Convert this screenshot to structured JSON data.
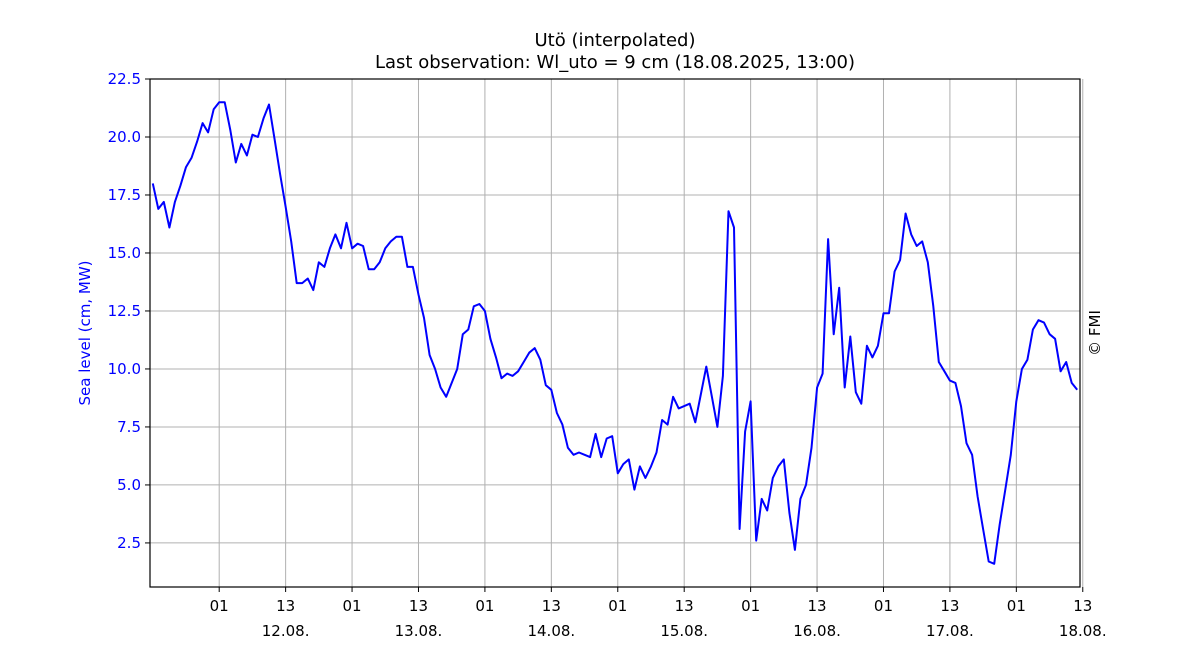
{
  "chart_data": {
    "type": "line",
    "title": "Utö (interpolated)",
    "subtitle": "Last observation: Wl_uto = 9 cm (18.08.2025, 13:00)",
    "ylabel": "Sea level (cm, MW)",
    "xlabel": "",
    "copyright": "© FMI",
    "ylim": [
      0.6,
      22.5
    ],
    "yticks": [
      2.5,
      5.0,
      7.5,
      10.0,
      12.5,
      15.0,
      17.5,
      20.0,
      22.5
    ],
    "ytick_labels": [
      "2.5",
      "5.0",
      "7.5",
      "10.0",
      "12.5",
      "15.0",
      "17.5",
      "20.0",
      "22.5"
    ],
    "x_unit": "hours from 11.08.2025 13:00",
    "xlim": [
      -0.5,
      167.5
    ],
    "xticks": [
      12,
      24,
      36,
      48,
      60,
      72,
      84,
      96,
      108,
      120,
      132,
      144,
      156,
      168
    ],
    "xtick_labels": [
      "01",
      "13",
      "01",
      "13",
      "01",
      "13",
      "01",
      "13",
      "01",
      "13",
      "01",
      "13",
      "01",
      "13"
    ],
    "xtick_date_labels": [
      "",
      "12.08.",
      "",
      "13.08.",
      "",
      "14.08.",
      "",
      "15.08.",
      "",
      "16.08.",
      "",
      "17.08.",
      "",
      "18.08."
    ],
    "grid": true,
    "colors": {
      "line": "#0000ff",
      "ylabel": "#0000ff",
      "grid": "#b0b0b0"
    },
    "series": [
      {
        "x": [
          0,
          1,
          2,
          3,
          4,
          5,
          6,
          7,
          8,
          9,
          10,
          11,
          12,
          13,
          14,
          15,
          16,
          17,
          18,
          19,
          20,
          21,
          22,
          23,
          24,
          25,
          26,
          27,
          28,
          29,
          30,
          31,
          32,
          33,
          34,
          35,
          36,
          37,
          38,
          39,
          40,
          41,
          42,
          43,
          44,
          45,
          46,
          47,
          48,
          49,
          50,
          51,
          52,
          53,
          54,
          55,
          56,
          57,
          58,
          59,
          60,
          61,
          62,
          63,
          64,
          65,
          66,
          67,
          68,
          69,
          70,
          71,
          72,
          73,
          74,
          75,
          76,
          77,
          78,
          79,
          80,
          81,
          82,
          83,
          84,
          85,
          86,
          87,
          88,
          89,
          90,
          91,
          92,
          93,
          94,
          95,
          96,
          97,
          98,
          99,
          100,
          101,
          102,
          103,
          104,
          105,
          106,
          107,
          108,
          109,
          110,
          111,
          112,
          113,
          114,
          115,
          116,
          117,
          118,
          119,
          120,
          121,
          122,
          123,
          124,
          125,
          126,
          127,
          128,
          129,
          130,
          131,
          132,
          133,
          134,
          135,
          136,
          137,
          138,
          139,
          140,
          141,
          142,
          143,
          144,
          145,
          146,
          147,
          148,
          149,
          150,
          151,
          152,
          153,
          154,
          155,
          156,
          157,
          158,
          159,
          160,
          161,
          162,
          163,
          164,
          165,
          166,
          167
        ],
        "y": [
          18.0,
          16.9,
          17.2,
          16.1,
          17.2,
          17.9,
          18.7,
          19.1,
          19.8,
          20.6,
          20.2,
          21.2,
          21.5,
          21.5,
          20.3,
          18.9,
          19.7,
          19.2,
          20.1,
          20.0,
          20.8,
          21.4,
          19.9,
          18.4,
          17.0,
          15.5,
          13.7,
          13.7,
          13.9,
          13.4,
          14.6,
          14.4,
          15.2,
          15.8,
          15.2,
          16.3,
          15.2,
          15.4,
          15.3,
          14.3,
          14.3,
          14.6,
          15.2,
          15.5,
          15.7,
          15.7,
          14.4,
          14.4,
          13.2,
          12.2,
          10.6,
          10.0,
          9.2,
          8.8,
          9.4,
          10.0,
          11.5,
          11.7,
          12.7,
          12.8,
          12.5,
          11.3,
          10.5,
          9.6,
          9.8,
          9.7,
          9.9,
          10.3,
          10.7,
          10.9,
          10.4,
          9.3,
          9.1,
          8.1,
          7.6,
          6.6,
          6.3,
          6.4,
          6.3,
          6.2,
          7.2,
          6.2,
          7.0,
          7.1,
          5.5,
          5.9,
          6.1,
          4.8,
          5.8,
          5.3,
          5.8,
          6.4,
          7.8,
          7.6,
          8.8,
          8.3,
          8.4,
          8.5,
          7.7,
          8.9,
          10.1,
          8.8,
          7.5,
          9.7,
          16.8,
          16.1,
          3.1,
          7.3,
          8.6,
          2.6,
          4.4,
          3.9,
          5.3,
          5.8,
          6.1,
          3.8,
          2.2,
          4.4,
          5.0,
          6.6,
          9.2,
          9.8,
          15.6,
          11.5,
          13.5,
          9.2,
          11.4,
          9.0,
          8.5,
          11.0,
          10.5,
          11.0,
          12.4,
          12.4,
          14.2,
          14.7,
          16.7,
          15.8,
          15.3,
          15.5,
          14.6,
          12.7,
          10.3,
          9.9,
          9.5,
          9.4,
          8.4,
          6.8,
          6.3,
          4.5,
          3.1,
          1.7,
          1.6,
          3.3,
          4.8,
          6.3,
          8.6,
          10.0,
          10.4,
          11.7,
          12.1,
          12.0,
          11.5,
          11.3,
          9.9,
          10.3,
          9.4,
          9.1
        ]
      }
    ]
  }
}
